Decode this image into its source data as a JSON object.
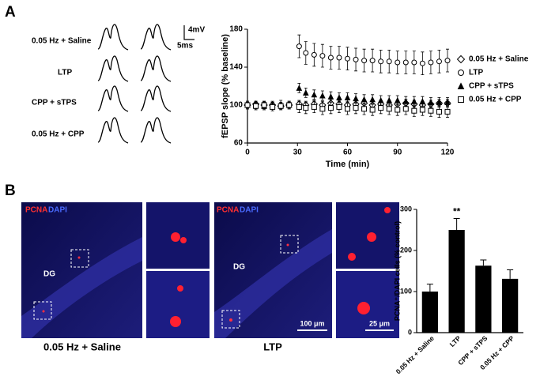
{
  "panel_labels": [
    "A",
    "B"
  ],
  "traces": {
    "labels": [
      "0.05 Hz + Saline",
      "LTP",
      "CPP + sTPS",
      "0.05 Hz + CPP"
    ],
    "scale_y": "4mV",
    "scale_x": "5ms"
  },
  "images": {
    "stain_red": "PCNA",
    "stain_blue": "DAPI",
    "region": "DG",
    "scale_large": "100 μm",
    "scale_small": "25 μm",
    "captions": [
      "0.05 Hz + Saline",
      "LTP"
    ]
  },
  "chart_data": [
    {
      "type": "scatter",
      "x": [
        0,
        5,
        10,
        15,
        20,
        25,
        31,
        35,
        40,
        45,
        50,
        55,
        60,
        65,
        70,
        75,
        80,
        85,
        90,
        95,
        100,
        105,
        110,
        115,
        120
      ],
      "series": [
        {
          "name": "0.05 Hz + Saline",
          "marker": "diamond",
          "color": "#000000",
          "values": [
            100,
            101,
            100,
            100,
            99,
            100,
            101,
            100,
            101,
            100,
            102,
            101,
            100,
            101,
            102,
            100,
            101,
            100,
            101,
            102,
            101,
            100,
            101,
            102,
            102
          ],
          "errors": [
            3,
            3,
            3,
            3,
            3,
            3,
            4,
            4,
            4,
            4,
            4,
            4,
            4,
            4,
            4,
            4,
            4,
            4,
            4,
            4,
            4,
            4,
            4,
            4,
            4
          ]
        },
        {
          "name": "LTP",
          "marker": "circle",
          "color": "#000000",
          "values": [
            100,
            100,
            101,
            100,
            99,
            100,
            162,
            155,
            153,
            152,
            150,
            150,
            149,
            148,
            147,
            147,
            146,
            146,
            145,
            145,
            145,
            144,
            145,
            146,
            147
          ],
          "errors": [
            3,
            3,
            3,
            3,
            3,
            3,
            12,
            12,
            12,
            12,
            12,
            12,
            12,
            12,
            12,
            12,
            12,
            12,
            12,
            12,
            12,
            12,
            12,
            12,
            12
          ]
        },
        {
          "name": "CPP + sTPS",
          "marker": "triangle",
          "color": "#000000",
          "values": [
            100,
            100,
            99,
            100,
            101,
            100,
            118,
            113,
            111,
            110,
            109,
            108,
            108,
            107,
            106,
            106,
            105,
            105,
            105,
            104,
            104,
            104,
            103,
            103,
            103
          ],
          "errors": [
            4,
            4,
            4,
            4,
            4,
            4,
            5,
            5,
            5,
            5,
            5,
            5,
            5,
            5,
            5,
            5,
            5,
            5,
            5,
            5,
            5,
            5,
            5,
            5,
            5
          ]
        },
        {
          "name": "0.05 Hz + CPP",
          "marker": "square",
          "color": "#000000",
          "values": [
            100,
            99,
            100,
            98,
            99,
            100,
            98,
            97,
            98,
            96,
            97,
            98,
            96,
            97,
            96,
            95,
            97,
            96,
            95,
            96,
            94,
            95,
            94,
            93,
            93
          ],
          "errors": [
            4,
            4,
            4,
            4,
            4,
            4,
            6,
            6,
            6,
            6,
            6,
            6,
            6,
            6,
            6,
            6,
            6,
            6,
            6,
            6,
            6,
            6,
            6,
            6,
            6
          ]
        }
      ],
      "xlim": [
        0,
        120
      ],
      "xticks": [
        0,
        30,
        60,
        90,
        120
      ],
      "ylim": [
        60,
        180
      ],
      "yticks": [
        60,
        100,
        140,
        180
      ],
      "xlabel": "Time (min)",
      "ylabel": "fEPSP slope (% baseline)",
      "legend": "right"
    },
    {
      "type": "bar",
      "categories": [
        "0.05 Hz + Saline",
        "LTP",
        "CPP + sTPS",
        "0.05 Hz + CPP"
      ],
      "values": [
        100,
        250,
        163,
        131
      ],
      "errors": [
        18,
        28,
        14,
        22
      ],
      "color": "#000000",
      "ylim": [
        0,
        300
      ],
      "yticks": [
        0,
        100,
        200,
        300
      ],
      "ylabel": "PCNA⁺/DAPI cells (% control)",
      "annotation": {
        "text": "**",
        "category": "LTP"
      }
    }
  ]
}
